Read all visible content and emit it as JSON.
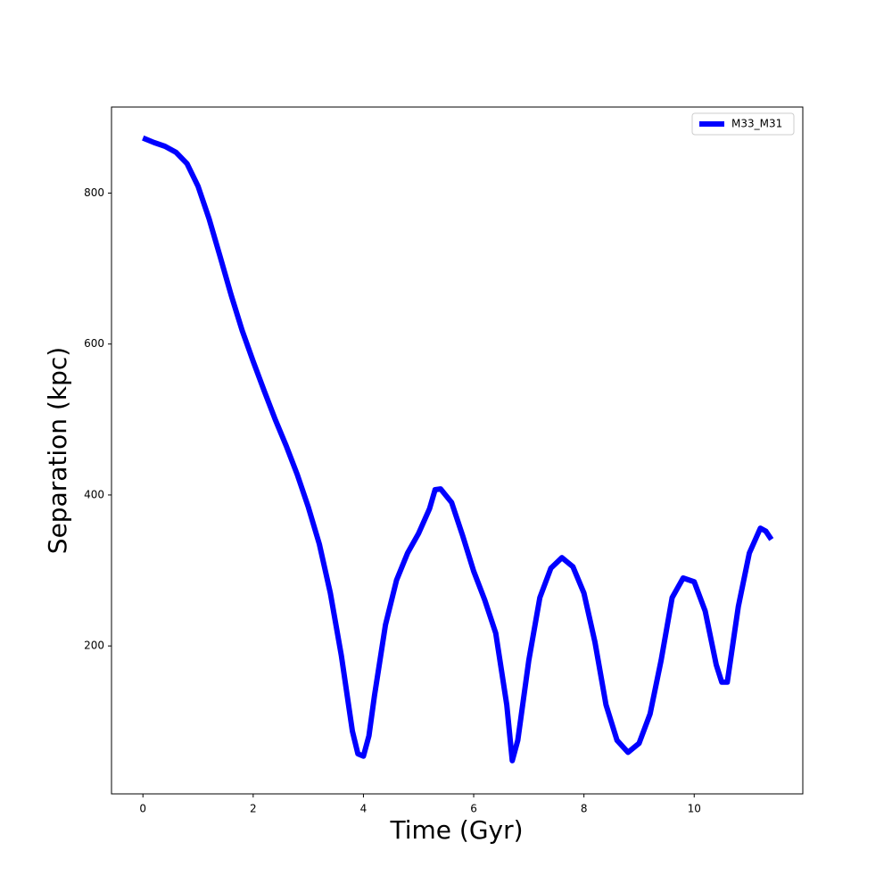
{
  "chart_data": {
    "type": "line",
    "x_label": "Time (Gyr)",
    "y_label": "Separation (kpc)",
    "x": [
      0,
      0.2,
      0.4,
      0.6,
      0.8,
      1.0,
      1.2,
      1.4,
      1.6,
      1.8,
      2.0,
      2.2,
      2.4,
      2.6,
      2.8,
      3.0,
      3.2,
      3.4,
      3.6,
      3.8,
      3.9,
      4.0,
      4.1,
      4.2,
      4.4,
      4.6,
      4.8,
      5.0,
      5.2,
      5.3,
      5.4,
      5.6,
      5.8,
      6.0,
      6.2,
      6.4,
      6.6,
      6.7,
      6.8,
      7.0,
      7.2,
      7.4,
      7.6,
      7.8,
      8.0,
      8.2,
      8.4,
      8.6,
      8.8,
      9.0,
      9.2,
      9.4,
      9.6,
      9.8,
      10.0,
      10.2,
      10.4,
      10.5,
      10.6,
      10.8,
      11.0,
      11.2,
      11.3,
      11.4
    ],
    "series": [
      {
        "name": "M33_M31",
        "color": "#0000ff",
        "values": [
          873,
          867,
          862,
          854,
          839,
          809,
          766,
          716,
          665,
          618,
          577,
          538,
          500,
          465,
          427,
          384,
          335,
          270,
          187,
          87,
          57,
          54,
          81,
          134,
          228,
          287,
          323,
          349,
          382,
          407,
          408,
          390,
          346,
          299,
          261,
          217,
          122,
          48,
          75,
          181,
          264,
          303,
          317,
          305,
          270,
          205,
          122,
          75,
          59,
          71,
          110,
          181,
          264,
          290,
          285,
          246,
          175,
          152,
          152,
          252,
          323,
          356,
          352,
          341
        ]
      }
    ],
    "xlim": [
      -0.57,
      11.97
    ],
    "ylim": [
      4,
      914
    ],
    "xticks": [
      0,
      2,
      4,
      6,
      8,
      10
    ],
    "yticks": [
      200,
      400,
      600,
      800
    ],
    "grid": false,
    "legend": "upper right"
  }
}
